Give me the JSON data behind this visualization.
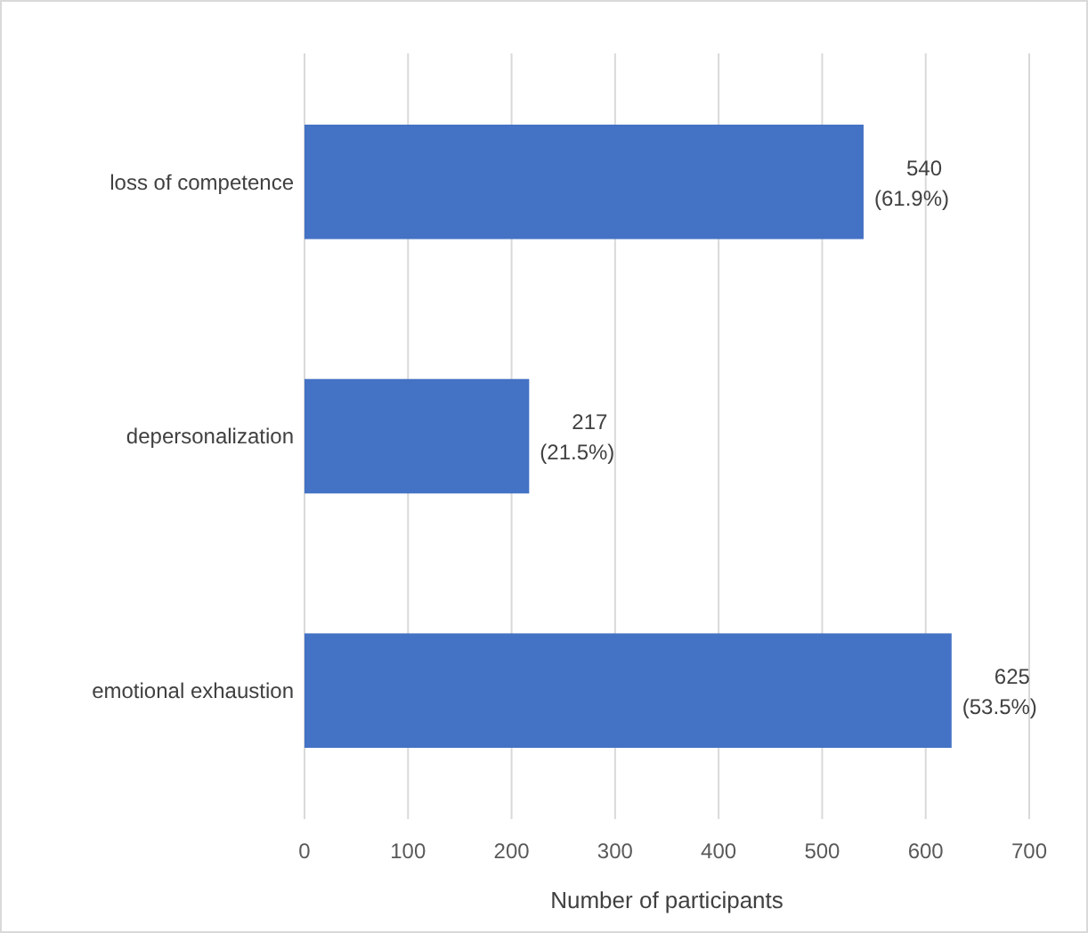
{
  "chart_data": {
    "type": "bar",
    "orientation": "horizontal",
    "categories": [
      "loss of competence",
      "depersonalization",
      "emotional exhaustion"
    ],
    "values": [
      540,
      217,
      625
    ],
    "color": "#4472c4",
    "value_labels": [
      "540 (61.9%)",
      "217 (21.5%)",
      "625 (53.5%)"
    ],
    "xlim": [
      0,
      700
    ],
    "xticks": [
      0,
      100,
      200,
      300,
      400,
      500,
      600,
      700
    ],
    "grid": "x",
    "xlabel": "Number of participants"
  }
}
